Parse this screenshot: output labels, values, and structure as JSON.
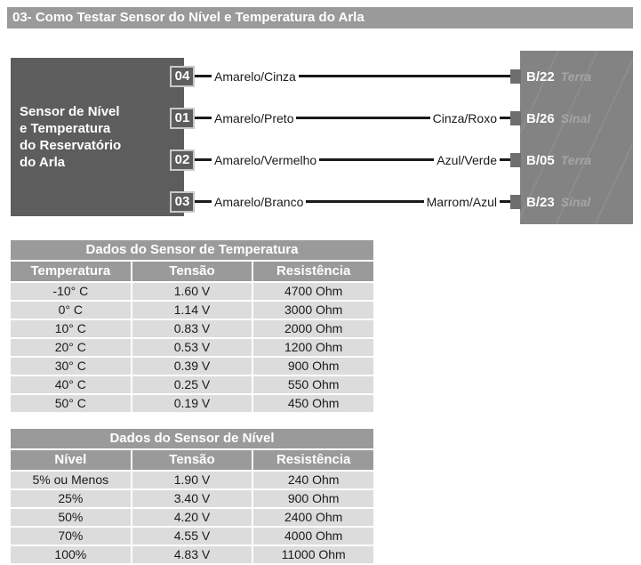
{
  "title_bar": {
    "text": "03- Como Testar Sensor do Nível e Temperatura do Arla"
  },
  "diagram": {
    "sensor_box": {
      "label_lines": [
        "Sensor de Nível",
        "e Temperatura",
        "do Reservatório",
        "do Arla"
      ]
    },
    "wires": [
      {
        "pin": "04",
        "wire_label": "Amarelo/Cinza",
        "second_label": "",
        "connector_pin": "B/22",
        "connector_role": "Terra"
      },
      {
        "pin": "01",
        "wire_label": "Amarelo/Preto",
        "second_label": "Cinza/Roxo",
        "connector_pin": "B/26",
        "connector_role": "Sinal"
      },
      {
        "pin": "02",
        "wire_label": "Amarelo/Vermelho",
        "second_label": "Azul/Verde",
        "connector_pin": "B/05",
        "connector_role": "Terra"
      },
      {
        "pin": "03",
        "wire_label": "Amarelo/Branco",
        "second_label": "Marrom/Azul",
        "connector_pin": "B/23",
        "connector_role": "Sinal"
      }
    ]
  },
  "tables": [
    {
      "title": "Dados do Sensor de Temperatura",
      "columns": [
        "Temperatura",
        "Tensão",
        "Resistência"
      ],
      "rows": [
        [
          "-10° C",
          "1.60 V",
          "4700 Ohm"
        ],
        [
          "0° C",
          "1.14 V",
          "3000 Ohm"
        ],
        [
          "10° C",
          "0.83 V",
          "2000 Ohm"
        ],
        [
          "20° C",
          "0.53 V",
          "1200 Ohm"
        ],
        [
          "30° C",
          "0.39 V",
          "900 Ohm"
        ],
        [
          "40° C",
          "0.25 V",
          "550 Ohm"
        ],
        [
          "50° C",
          "0.19 V",
          "450 Ohm"
        ]
      ]
    },
    {
      "title": "Dados do Sensor de Nível",
      "columns": [
        "Nível",
        "Tensão",
        "Resistência"
      ],
      "rows": [
        [
          "5% ou Menos",
          "1.90 V",
          "240 Ohm"
        ],
        [
          "25%",
          "3.40 V",
          "900 Ohm"
        ],
        [
          "50%",
          "4.20 V",
          "2400 Ohm"
        ],
        [
          "70%",
          "4.55 V",
          "4000 Ohm"
        ],
        [
          "100%",
          "4.83 V",
          "11000 Ohm"
        ]
      ]
    }
  ],
  "colors": {
    "header_gray": "#9a9a9a",
    "sensor_box_gray": "#5d5d5d",
    "connector_gray": "#838383",
    "table_row_gray": "#dcdcdc",
    "wire_black": "#1a1a1a",
    "text_white": "#ffffff"
  }
}
